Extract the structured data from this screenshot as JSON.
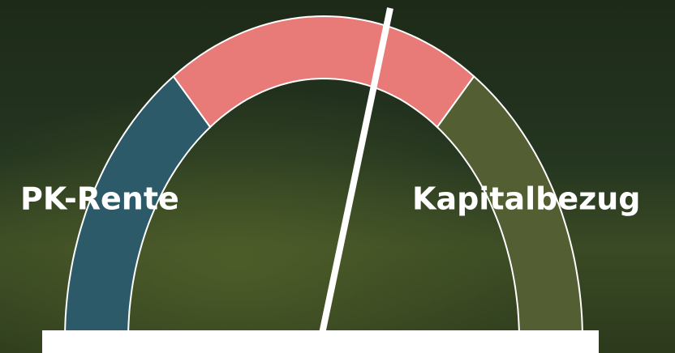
{
  "labels": {
    "left": "PK-Rente",
    "right": "Kapitalbezug"
  }
}
